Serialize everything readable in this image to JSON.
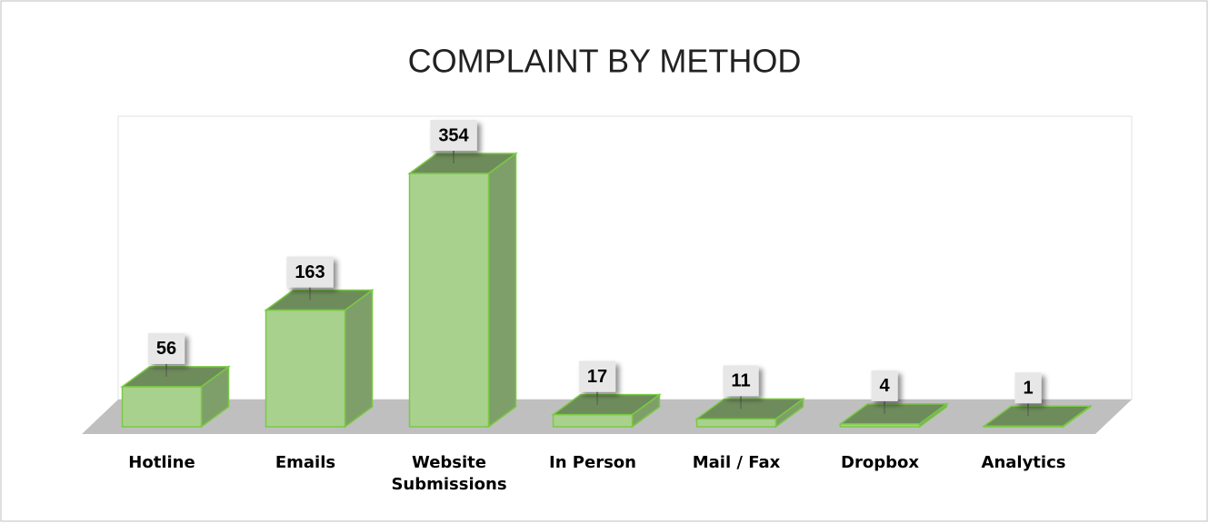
{
  "chart_data": {
    "type": "bar3d",
    "title": "COMPLAINT BY METHOD",
    "categories": [
      "Hotline",
      "Emails",
      "Website Submissions",
      "In Person",
      "Mail / Fax",
      "Dropbox",
      "Analytics"
    ],
    "values": [
      56,
      163,
      354,
      17,
      11,
      4,
      1
    ],
    "color": "#a9d18e"
  }
}
